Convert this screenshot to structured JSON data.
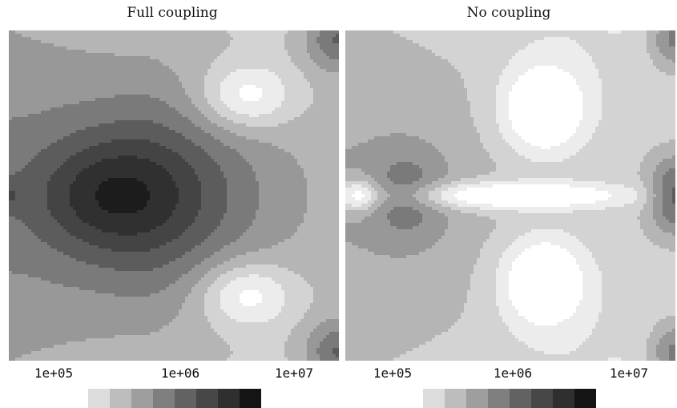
{
  "chart_data": [
    {
      "type": "heatmap",
      "title": "Full coupling",
      "x_ticks": [
        "1e+05",
        "1e+06",
        "1e+07"
      ],
      "x_scale": "log",
      "levels": 10,
      "palette": [
        "#ffffff",
        "#ececec",
        "#d3d3d3",
        "#b5b5b5",
        "#989898",
        "#7a7a7a",
        "#5c5c5c",
        "#444444",
        "#303030",
        "#1c1c1c"
      ],
      "legend_colors": [
        "#dcdcdc",
        "#bdbdbd",
        "#9e9e9e",
        "#7f7f7f",
        "#626262",
        "#474747",
        "#2f2f2f",
        "#141414"
      ],
      "legend": "below, horizontal"
    },
    {
      "type": "heatmap",
      "title": "No coupling",
      "x_ticks": [
        "1e+05",
        "1e+06",
        "1e+07"
      ],
      "x_scale": "log",
      "levels": 10,
      "palette": [
        "#ffffff",
        "#ececec",
        "#d3d3d3",
        "#b5b5b5",
        "#989898",
        "#7a7a7a",
        "#5c5c5c",
        "#444444",
        "#303030",
        "#1c1c1c"
      ],
      "legend_colors": [
        "#dcdcdc",
        "#bdbdbd",
        "#9e9e9e",
        "#7f7f7f",
        "#626262",
        "#474747",
        "#2f2f2f",
        "#141414"
      ],
      "legend": "below, horizontal"
    }
  ]
}
